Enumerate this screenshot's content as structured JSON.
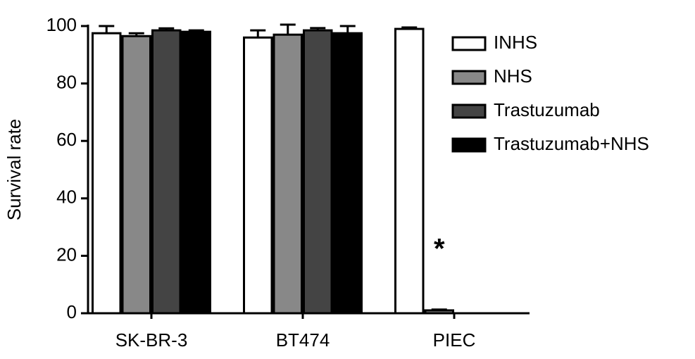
{
  "chart_data": {
    "type": "bar",
    "y_label": "Survival rate",
    "categories": [
      "SK-BR-3",
      "BT474",
      "PIEC"
    ],
    "series": [
      {
        "name": "INHS",
        "color": "#ffffff",
        "values": [
          97.5,
          96,
          99
        ],
        "errors": [
          2.5,
          2.5,
          0.5
        ]
      },
      {
        "name": "NHS",
        "color": "#888888",
        "values": [
          96.5,
          97,
          1
        ],
        "errors": [
          1,
          3.5,
          0.3
        ]
      },
      {
        "name": "Trastuzumab",
        "color": "#444444",
        "values": [
          98.5,
          98.5,
          null
        ],
        "errors": [
          0.7,
          0.8,
          null
        ]
      },
      {
        "name": "Trastuzumab+NHS",
        "color": "#000000",
        "values": [
          98,
          97.5,
          null
        ],
        "errors": [
          0.5,
          2.5,
          null
        ]
      }
    ],
    "ylim": [
      0,
      100
    ],
    "yticks": [
      0,
      20,
      40,
      60,
      80,
      100
    ],
    "annotations": [
      {
        "text": "*",
        "category": 2,
        "series": 1
      }
    ]
  }
}
